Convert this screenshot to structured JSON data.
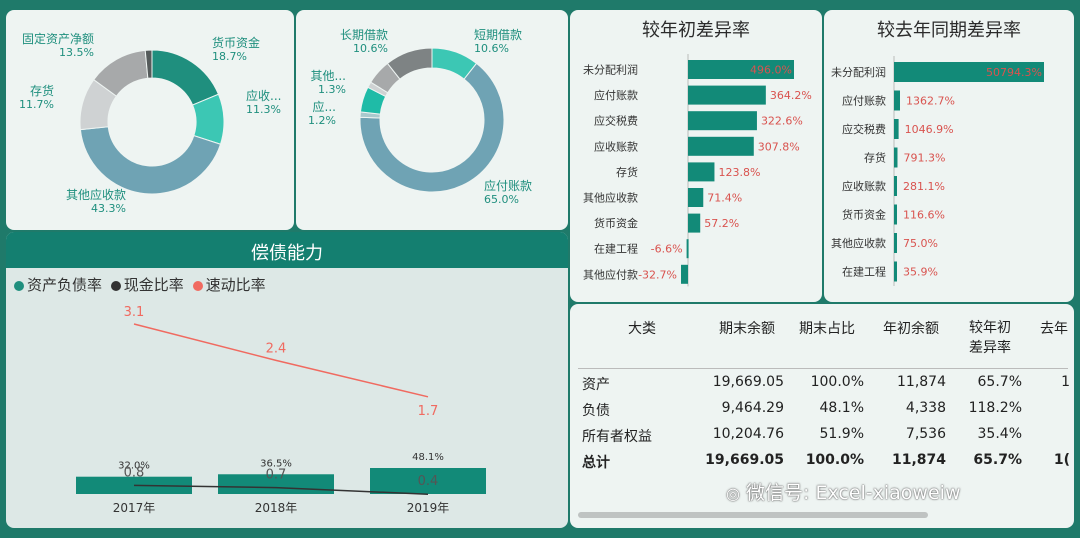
{
  "donut1": {
    "slices": [
      {
        "name": "货币资金",
        "pct": "18.7%",
        "value": 18.7,
        "color": "#1f8f7e"
      },
      {
        "name": "应收...",
        "pct": "11.3%",
        "value": 11.3,
        "color": "#3cc7b4"
      },
      {
        "name": "其他应收款",
        "pct": "43.3%",
        "value": 43.3,
        "color": "#6fa3b4"
      },
      {
        "name": "存货",
        "pct": "11.7%",
        "value": 11.7,
        "color": "#cfd2d3"
      },
      {
        "name": "固定资产净额",
        "pct": "13.5%",
        "value": 13.5,
        "color": "#a7a9aa"
      },
      {
        "name": "",
        "pct": "",
        "value": 1.5,
        "color": "#555b5b"
      }
    ]
  },
  "donut2": {
    "slices": [
      {
        "name": "短期借款",
        "pct": "10.6%",
        "value": 10.6,
        "color": "#3cc7b4"
      },
      {
        "name": "应付账款",
        "pct": "65.0%",
        "value": 65.0,
        "color": "#6fa3b4"
      },
      {
        "name": "应...",
        "pct": "1.2%",
        "value": 1.2,
        "color": "#a9c9cd"
      },
      {
        "name": "",
        "pct": "",
        "value": 5.7,
        "color": "#1fbba7"
      },
      {
        "name": "其他...",
        "pct": "1.3%",
        "value": 1.3,
        "color": "#cfd2d3"
      },
      {
        "name": "",
        "pct": "",
        "value": 5.6,
        "color": "#a7a9aa"
      },
      {
        "name": "长期借款",
        "pct": "10.6%",
        "value": 10.6,
        "color": "#7e8384"
      }
    ]
  },
  "bars_begin": {
    "title": "较年初差异率",
    "items": [
      {
        "label": "未分配利润",
        "value": 496.0,
        "text": "496.0%"
      },
      {
        "label": "应付账款",
        "value": 364.2,
        "text": "364.2%"
      },
      {
        "label": "应交税费",
        "value": 322.6,
        "text": "322.6%"
      },
      {
        "label": "应收账款",
        "value": 307.8,
        "text": "307.8%"
      },
      {
        "label": "存货",
        "value": 123.8,
        "text": "123.8%"
      },
      {
        "label": "其他应收款",
        "value": 71.4,
        "text": "71.4%"
      },
      {
        "label": "货币资金",
        "value": 57.2,
        "text": "57.2%"
      },
      {
        "label": "在建工程",
        "value": -6.6,
        "text": "-6.6%"
      },
      {
        "label": "其他应付款",
        "value": -32.7,
        "text": "-32.7%"
      }
    ]
  },
  "bars_yoy": {
    "title": "较去年同期差异率",
    "items": [
      {
        "label": "未分配利润",
        "value": 50794.3,
        "text": "50794.3%"
      },
      {
        "label": "应付账款",
        "value": 1362.7,
        "text": "1362.7%"
      },
      {
        "label": "应交税费",
        "value": 1046.9,
        "text": "1046.9%"
      },
      {
        "label": "存货",
        "value": 791.3,
        "text": "791.3%"
      },
      {
        "label": "应收账款",
        "value": 281.1,
        "text": "281.1%"
      },
      {
        "label": "货币资金",
        "value": 116.6,
        "text": "116.6%"
      },
      {
        "label": "其他应收款",
        "value": 75.0,
        "text": "75.0%"
      },
      {
        "label": "在建工程",
        "value": 35.9,
        "text": "35.9%"
      }
    ]
  },
  "solvency": {
    "title": "偿债能力",
    "legend": [
      {
        "name": "资产负债率",
        "color": "#1f8f7e"
      },
      {
        "name": "现金比率",
        "color": "#333333"
      },
      {
        "name": "速动比率",
        "color": "#f06a60"
      }
    ],
    "chart_data": {
      "type": "bar",
      "categories": [
        "2017年",
        "2018年",
        "2019年"
      ],
      "series": [
        {
          "name": "资产负债率",
          "type": "bar",
          "values": [
            32.0,
            36.5,
            48.1
          ],
          "labels": [
            "32.0%",
            "36.5%",
            "48.1%"
          ]
        },
        {
          "name": "现金比率",
          "type": "line",
          "values": [
            0.8,
            0.7,
            0.4
          ],
          "labels": [
            "0.8",
            "0.7",
            "0.4"
          ]
        },
        {
          "name": "速动比率",
          "type": "line",
          "values": [
            3.1,
            2.4,
            1.7
          ],
          "labels": [
            "3.1",
            "2.4",
            "1.7"
          ]
        }
      ]
    }
  },
  "table": {
    "headers": [
      "大类",
      "期末余额",
      "期末占比",
      "年初余额",
      "较年初",
      "差异率",
      "去年"
    ],
    "rows": [
      {
        "name": "资产",
        "end": "19,669.05",
        "ratio": "100.0%",
        "begin": "11,874",
        "diff": "65.7%",
        "last": "1"
      },
      {
        "name": "负债",
        "end": "9,464.29",
        "ratio": "48.1%",
        "begin": "4,338",
        "diff": "118.2%",
        "last": ""
      },
      {
        "name": "所有者权益",
        "end": "10,204.76",
        "ratio": "51.9%",
        "begin": "7,536",
        "diff": "35.4%",
        "last": ""
      },
      {
        "name": "总计",
        "end": "19,669.05",
        "ratio": "100.0%",
        "begin": "11,874",
        "diff": "65.7%",
        "last": "1("
      }
    ]
  },
  "watermark": "微信号: Excel-xiaoweiw"
}
